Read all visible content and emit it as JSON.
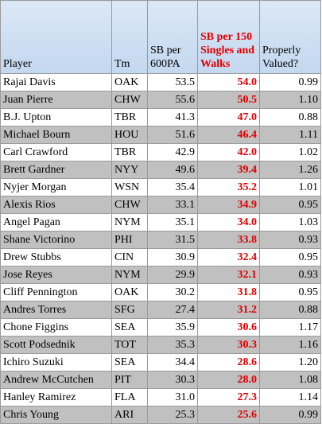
{
  "table": {
    "header": [
      "Player",
      "Tm",
      "SB per 600PA",
      "SB per 150 Singles and Walks",
      "Properly Valued?"
    ],
    "rows": [
      [
        "Rajai Davis",
        "OAK",
        "53.5",
        "54.0",
        "0.99"
      ],
      [
        "Juan Pierre",
        "CHW",
        "55.6",
        "50.5",
        "1.10"
      ],
      [
        "B.J. Upton",
        "TBR",
        "41.3",
        "47.0",
        "0.88"
      ],
      [
        "Michael Bourn",
        "HOU",
        "51.6",
        "46.4",
        "1.11"
      ],
      [
        "Carl Crawford",
        "TBR",
        "42.9",
        "42.0",
        "1.02"
      ],
      [
        "Brett Gardner",
        "NYY",
        "49.6",
        "39.4",
        "1.26"
      ],
      [
        "Nyjer Morgan",
        "WSN",
        "35.4",
        "35.2",
        "1.01"
      ],
      [
        "Alexis Rios",
        "CHW",
        "33.1",
        "34.9",
        "0.95"
      ],
      [
        "Angel Pagan",
        "NYM",
        "35.1",
        "34.0",
        "1.03"
      ],
      [
        "Shane Victorino",
        "PHI",
        "31.5",
        "33.8",
        "0.93"
      ],
      [
        "Drew Stubbs",
        "CIN",
        "30.9",
        "32.4",
        "0.95"
      ],
      [
        "Jose Reyes",
        "NYM",
        "29.9",
        "32.1",
        "0.93"
      ],
      [
        "Cliff Pennington",
        "OAK",
        "30.2",
        "31.8",
        "0.95"
      ],
      [
        "Andres Torres",
        "SFG",
        "27.4",
        "31.2",
        "0.88"
      ],
      [
        "Chone Figgins",
        "SEA",
        "35.9",
        "30.6",
        "1.17"
      ],
      [
        "Scott Podsednik",
        "TOT",
        "35.3",
        "30.3",
        "1.16"
      ],
      [
        "Ichiro Suzuki",
        "SEA",
        "34.4",
        "28.6",
        "1.20"
      ],
      [
        "Andrew McCutchen",
        "PIT",
        "30.3",
        "28.0",
        "1.08"
      ],
      [
        "Hanley Ramirez",
        "FLA",
        "31.0",
        "27.3",
        "1.14"
      ],
      [
        "Chris Young",
        "ARI",
        "25.3",
        "25.6",
        "0.99"
      ]
    ]
  }
}
